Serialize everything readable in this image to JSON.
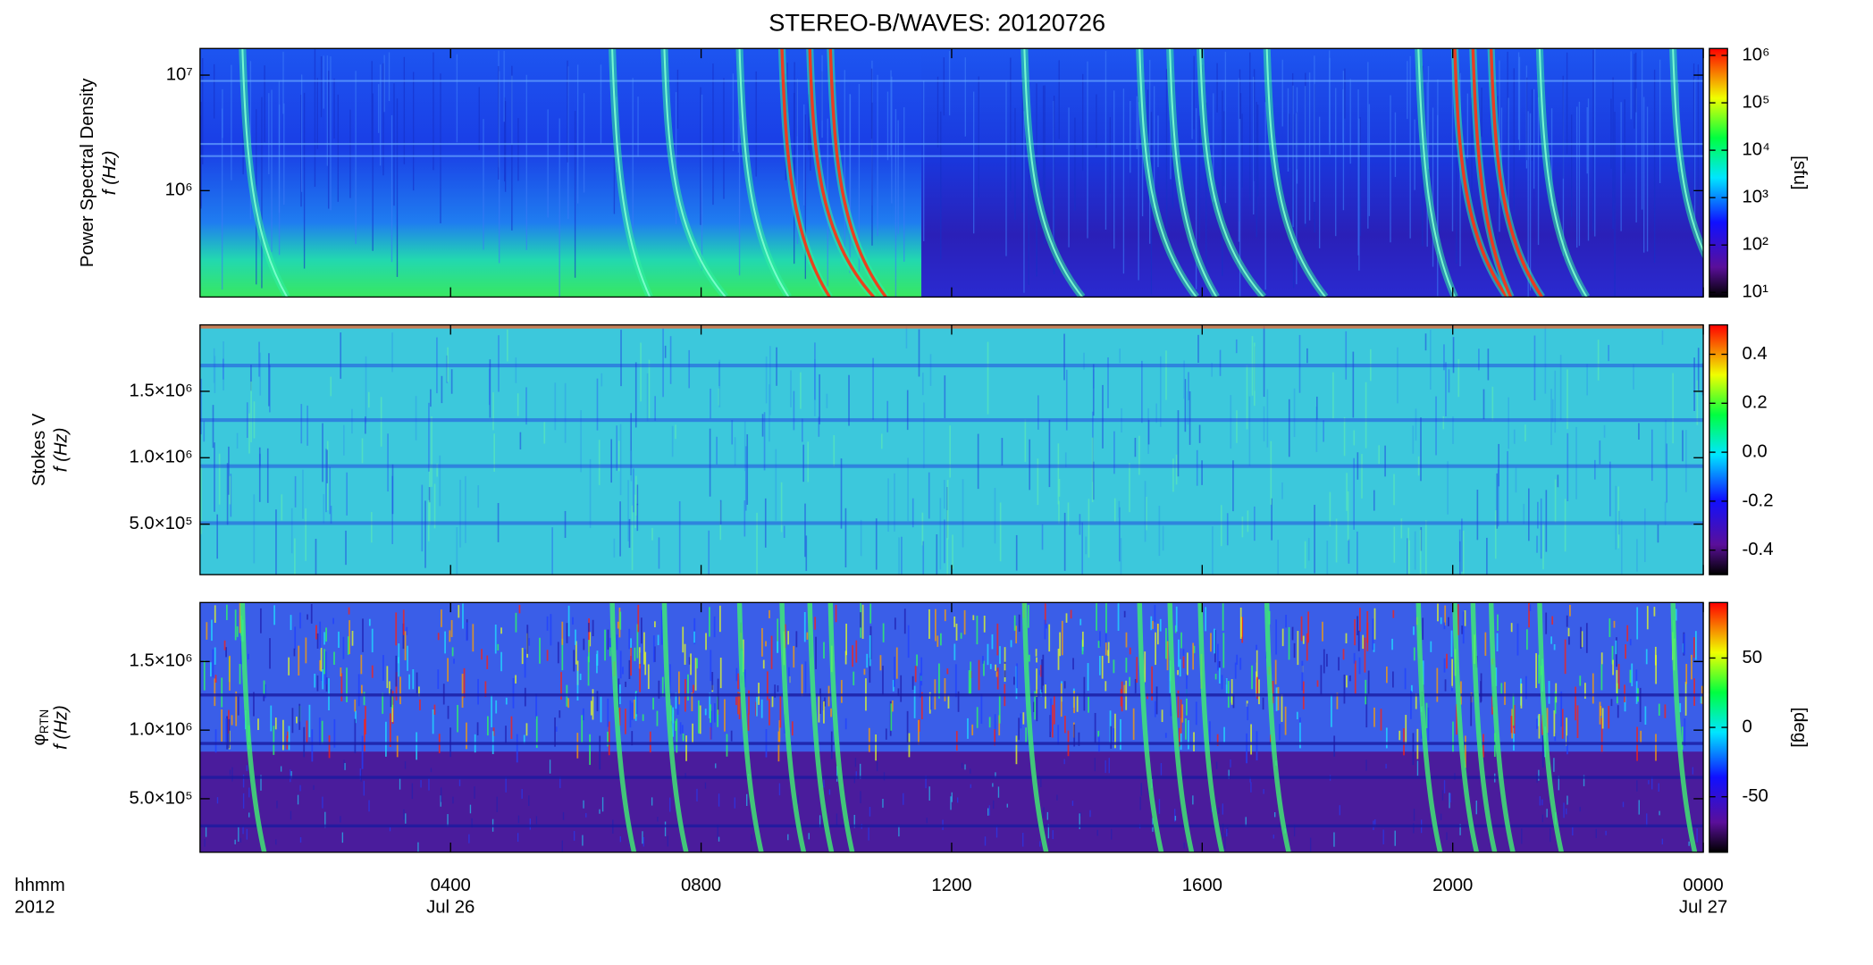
{
  "chart_data": [
    {
      "type": "heatmap",
      "title": "STEREO-B/WAVES: 20120726",
      "ylabel": "Power Spectral Density",
      "ylabel2": "f (Hz)",
      "ylog": true,
      "ylim": [
        120000,
        17000000
      ],
      "yticks": [
        {
          "value": 1000000,
          "label": "10⁶"
        },
        {
          "value": 10000000,
          "label": "10⁷"
        }
      ],
      "colorbar": {
        "label": "[sfu]",
        "log": true,
        "lim": [
          8,
          1400000
        ],
        "ticks": [
          {
            "value": 10,
            "label": "10¹"
          },
          {
            "value": 100,
            "label": "10²"
          },
          {
            "value": 1000,
            "label": "10³"
          },
          {
            "value": 10000,
            "label": "10⁴"
          },
          {
            "value": 100000,
            "label": "10⁵"
          },
          {
            "value": 1000000,
            "label": "10⁶"
          }
        ]
      }
    },
    {
      "type": "heatmap",
      "ylabel": "Stokes V",
      "ylabel2": "f (Hz)",
      "ylog": false,
      "ylim": [
        120000,
        2000000
      ],
      "yticks": [
        {
          "value": 500000,
          "label": "5.0×10⁵"
        },
        {
          "value": 1000000,
          "label": "1.0×10⁶"
        },
        {
          "value": 1500000,
          "label": "1.5×10⁶"
        }
      ],
      "colorbar": {
        "log": false,
        "lim": [
          -0.5,
          0.52
        ],
        "ticks": [
          -0.4,
          -0.2,
          {
            "value": 0,
            "label": "0.0"
          },
          0.2,
          0.4
        ]
      }
    },
    {
      "type": "heatmap",
      "ylabel": "φ",
      "ylabel_sub": "RTN",
      "ylabel2": "f (Hz)",
      "ylog": false,
      "ylim": [
        110000,
        1930000
      ],
      "yticks": [
        {
          "value": 500000,
          "label": "5.0×10⁵"
        },
        {
          "value": 1000000,
          "label": "1.0×10⁶"
        },
        {
          "value": 1500000,
          "label": "1.5×10⁶"
        }
      ],
      "colorbar": {
        "label": "[deg]",
        "log": false,
        "lim": [
          -90,
          90
        ],
        "ticks": [
          -50,
          0,
          50
        ]
      },
      "xlim": [
        0,
        24
      ],
      "xticks": [
        {
          "value": 4,
          "label": "0400"
        },
        {
          "value": 8,
          "label": "0800"
        },
        {
          "value": 12,
          "label": "1200"
        },
        {
          "value": 16,
          "label": "1600"
        },
        {
          "value": 20,
          "label": "2000"
        },
        {
          "value": 24,
          "label": "0000"
        }
      ],
      "xtick_dates": [
        {
          "value": 4,
          "label": "Jul 26"
        },
        {
          "value": 24,
          "label": "Jul 27"
        }
      ],
      "xlabel": [
        "hhmm",
        "2012"
      ]
    }
  ]
}
